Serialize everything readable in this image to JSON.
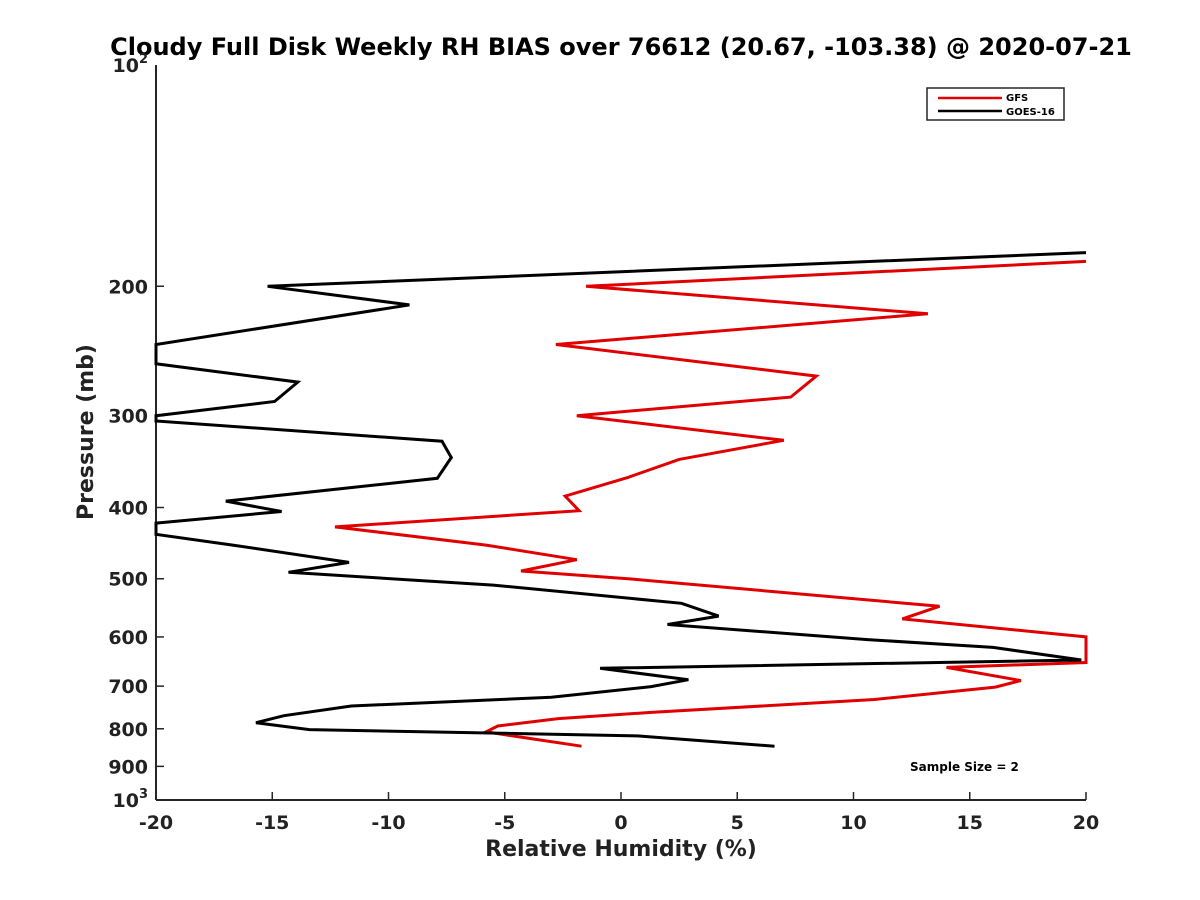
{
  "chart_data": {
    "type": "line",
    "title": "Cloudy Full Disk Weekly RH BIAS over 76612 (20.67, -103.38) @ 2020-07-21",
    "xlabel": "Relative Humidity (%)",
    "ylabel": "Pressure (mb)",
    "xlim": [
      -20,
      20
    ],
    "ylim": [
      100,
      1000
    ],
    "yscale": "log",
    "y_reversed": true,
    "x_ticks": [
      -20,
      -15,
      -10,
      -5,
      0,
      5,
      10,
      15,
      20
    ],
    "x_tick_labels": [
      "-20",
      "-15",
      "-10",
      "-5",
      "0",
      "5",
      "10",
      "15",
      "20"
    ],
    "y_ticks": [
      200,
      300,
      400,
      500,
      600,
      700,
      800,
      900
    ],
    "y_tick_labels": [
      "200",
      "300",
      "400",
      "500",
      "600",
      "700",
      "800",
      "900"
    ],
    "y_tick_top": {
      "base": "10",
      "exp": "2"
    },
    "y_tick_bottom": {
      "base": "10",
      "exp": "3"
    },
    "legend_position": "top-right",
    "annotation": "Sample Size = 2",
    "series": [
      {
        "name": "GFS",
        "color": "#e00000",
        "points": [
          [
            20,
            185
          ],
          [
            -1.5,
            200
          ],
          [
            13.2,
            218
          ],
          [
            -2.8,
            240
          ],
          [
            8.4,
            265
          ],
          [
            7.3,
            283
          ],
          [
            -1.9,
            300
          ],
          [
            7,
            324
          ],
          [
            2.5,
            344
          ],
          [
            0.3,
            364
          ],
          [
            -2.4,
            386
          ],
          [
            -1.8,
            404
          ],
          [
            -12.3,
            425
          ],
          [
            -5.8,
            450
          ],
          [
            -1.9,
            471
          ],
          [
            -4.3,
            488
          ],
          [
            0.3,
            500
          ],
          [
            13.7,
            545
          ],
          [
            12.1,
            567
          ],
          [
            20,
            600
          ],
          [
            20,
            650
          ],
          [
            14,
            660
          ],
          [
            17.2,
            688
          ],
          [
            16.1,
            702
          ],
          [
            10.9,
            730
          ],
          [
            1.3,
            760
          ],
          [
            -2.7,
            775
          ],
          [
            -5.3,
            793
          ],
          [
            -5.8,
            808
          ],
          [
            -1.7,
            845
          ]
        ]
      },
      {
        "name": "GOES-16",
        "color": "#000000",
        "points": [
          [
            20,
            180
          ],
          [
            -15.2,
            200
          ],
          [
            -9.1,
            212
          ],
          [
            -20,
            240
          ],
          [
            -20,
            255
          ],
          [
            -13.9,
            270
          ],
          [
            -14.9,
            287
          ],
          [
            -20,
            300
          ],
          [
            -20,
            305
          ],
          [
            -7.7,
            325
          ],
          [
            -7.3,
            342
          ],
          [
            -7.9,
            365
          ],
          [
            -17,
            392
          ],
          [
            -14.6,
            405
          ],
          [
            -20,
            420
          ],
          [
            -20,
            435
          ],
          [
            -16.7,
            450
          ],
          [
            -11.7,
            475
          ],
          [
            -14.3,
            490
          ],
          [
            -5.5,
            510
          ],
          [
            2.6,
            540
          ],
          [
            4.2,
            562
          ],
          [
            2,
            577
          ],
          [
            10.6,
            605
          ],
          [
            16,
            620
          ],
          [
            19.8,
            645
          ],
          [
            -0.9,
            662
          ],
          [
            2.9,
            686
          ],
          [
            1.3,
            701
          ],
          [
            -3,
            725
          ],
          [
            -11.6,
            745
          ],
          [
            -14.5,
            768
          ],
          [
            -15.7,
            785
          ],
          [
            -13.4,
            802
          ],
          [
            0.7,
            818
          ],
          [
            6.6,
            845
          ]
        ]
      }
    ]
  }
}
